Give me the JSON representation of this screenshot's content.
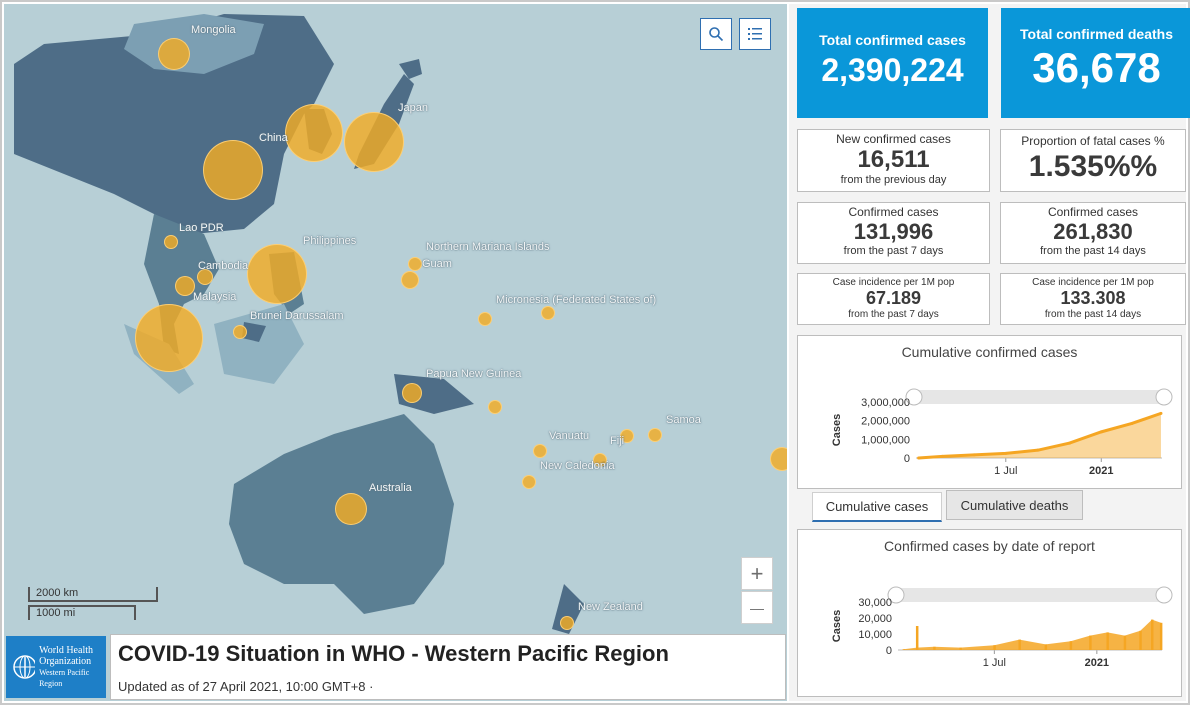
{
  "map": {
    "labels": [
      "Mongolia",
      "China",
      "Japan",
      "Lao PDR",
      "Philippines",
      "Cambodia",
      "Malaysia",
      "Brunei Darussalam",
      "Northern Mariana Islands",
      "Guam",
      "Micronesia (Federated States of)",
      "Papua New Guinea",
      "Vanuatu",
      "Fiji",
      "Samoa",
      "New Caledonia",
      "Australia",
      "New Zealand"
    ],
    "search_icon": "search-icon",
    "legend_icon": "list-icon",
    "zoom_in": "+",
    "zoom_out": "—",
    "scale_km": "2000 km",
    "scale_mi": "1000 mi"
  },
  "header": {
    "logo_line1": "World Health",
    "logo_line2": "Organization",
    "logo_line3": "Western Pacific Region",
    "title": "COVID-19 Situation in WHO - Western Pacific Region",
    "updated": "Updated as of 27 April 2021, 10:00 GMT+8 ·"
  },
  "stats": {
    "total_cases_label": "Total confirmed cases",
    "total_cases_value": "2,390,224",
    "total_deaths_label": "Total confirmed deaths",
    "total_deaths_value": "36,678",
    "new_cases_label": "New confirmed cases",
    "new_cases_value": "16,511",
    "new_cases_sub": "from the previous day",
    "fatal_label": "Proportion of fatal cases %",
    "fatal_value": "1.535%%",
    "cases7_label": "Confirmed cases",
    "cases7_value": "131,996",
    "cases7_sub": "from the past 7 days",
    "cases14_label": "Confirmed cases",
    "cases14_value": "261,830",
    "cases14_sub": "from the past 14 days",
    "inc7_label": "Case incidence per 1M pop",
    "inc7_value": "67.189",
    "inc7_sub": "from the past 7 days",
    "inc14_label": "Case incidence per 1M pop",
    "inc14_value": "133.308",
    "inc14_sub": "from the past 14 days"
  },
  "tabs": {
    "cumulative_cases": "Cumulative cases",
    "cumulative_deaths": "Cumulative deaths"
  },
  "colors": {
    "accent_blue": "#0a97d9",
    "bubble": "#f1ab25",
    "chart_orange": "#f5a623"
  },
  "chart_data": [
    {
      "type": "area",
      "title": "Cumulative confirmed cases",
      "ylabel": "Cases",
      "xlabel": "",
      "x_ticks": [
        "1 Jul",
        "2021"
      ],
      "y_ticks": [
        "0",
        "1,000,000",
        "2,000,000",
        "3,000,000"
      ],
      "ylim": [
        0,
        3000000
      ],
      "x": [
        "2020-01-15",
        "2020-03-01",
        "2020-05-01",
        "2020-07-01",
        "2020-09-01",
        "2020-11-01",
        "2021-01-01",
        "2021-03-01",
        "2021-04-26"
      ],
      "values": [
        0,
        90000,
        170000,
        250000,
        420000,
        800000,
        1400000,
        1850000,
        2390224
      ]
    },
    {
      "type": "bar",
      "title": "Confirmed cases by date of report",
      "ylabel": "Cases",
      "xlabel": "",
      "x_ticks": [
        "1 Jul",
        "2021"
      ],
      "y_ticks": [
        "0",
        "10,000",
        "20,000",
        "30,000"
      ],
      "ylim": [
        0,
        30000
      ],
      "x": [
        "2020-01-20",
        "2020-02-13",
        "2020-03-15",
        "2020-05-01",
        "2020-07-01",
        "2020-08-15",
        "2020-10-01",
        "2020-11-15",
        "2020-12-20",
        "2021-01-20",
        "2021-02-20",
        "2021-03-20",
        "2021-04-10",
        "2021-04-26"
      ],
      "values": [
        500,
        15000,
        2000,
        1500,
        3000,
        6500,
        3500,
        5500,
        9000,
        11000,
        9000,
        12000,
        19000,
        17000
      ]
    }
  ]
}
